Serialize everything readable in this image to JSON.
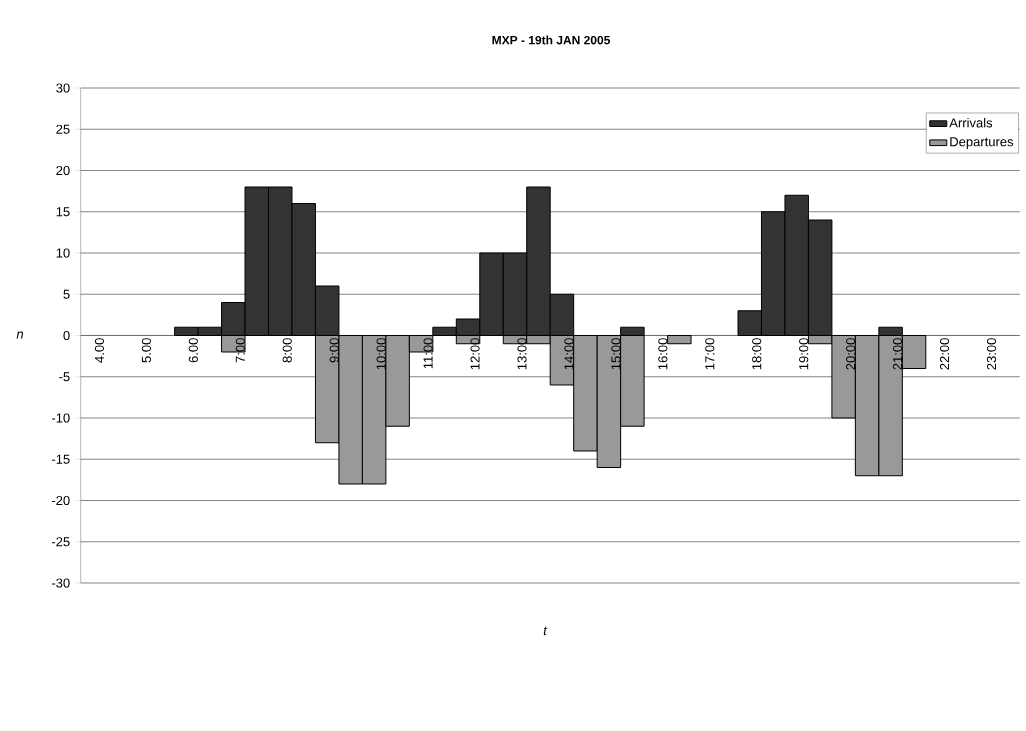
{
  "chart_data": {
    "type": "bar",
    "title": "MXP  -  19th JAN 2005",
    "xlabel": "t",
    "ylabel": "n",
    "categories": [
      "4.00",
      null,
      "5.00",
      null,
      "6.00",
      null,
      "7:00",
      null,
      "8:00",
      null,
      "9:00",
      null,
      "10:00",
      null,
      "11:00",
      null,
      "12:00",
      null,
      "13:00",
      null,
      "14:00",
      null,
      "15:00",
      null,
      "16:00",
      null,
      "17:00",
      null,
      "18:00",
      null,
      "19:00",
      null,
      "20:00",
      null,
      "21:00",
      null,
      "22:00",
      null,
      "23:00",
      null
    ],
    "series": [
      {
        "name": "Arrivals",
        "color": "#333333",
        "values": [
          null,
          null,
          null,
          null,
          1,
          1,
          4,
          18,
          18,
          16,
          6,
          null,
          null,
          null,
          null,
          1,
          2,
          10,
          10,
          18,
          5,
          null,
          null,
          1,
          null,
          null,
          null,
          null,
          3,
          15,
          17,
          14,
          null,
          null,
          1,
          null,
          null,
          null,
          null,
          null
        ]
      },
      {
        "name": "Departures",
        "color": "#999999",
        "values": [
          null,
          null,
          null,
          null,
          null,
          null,
          -2,
          null,
          null,
          null,
          -13,
          -18,
          -18,
          -11,
          -2,
          null,
          -1,
          null,
          -1,
          -1,
          -6,
          -14,
          -16,
          -11,
          null,
          -1,
          null,
          null,
          null,
          null,
          null,
          -1,
          -10,
          -17,
          -17,
          -4,
          null,
          null,
          null,
          null
        ]
      }
    ],
    "ylim": [
      -30,
      30
    ],
    "yticks": [
      -30,
      -25,
      -20,
      -15,
      -10,
      -5,
      0,
      5,
      10,
      15,
      20,
      25,
      30
    ],
    "grid": "y",
    "legend": "top right",
    "marker": "none"
  }
}
